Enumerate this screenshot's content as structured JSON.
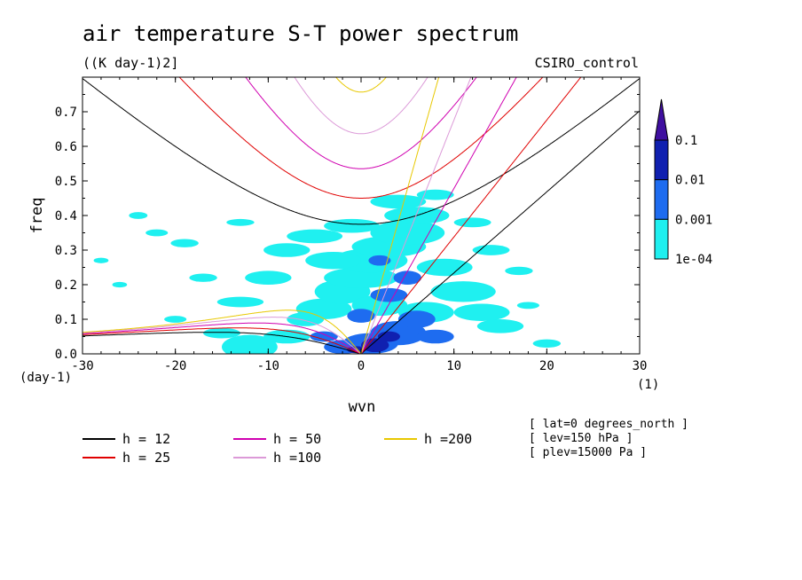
{
  "chart_data": {
    "type": "heatmap",
    "title": "air temperature S-T power spectrum",
    "units": "((K day-1)2]",
    "model": "CSIRO_control",
    "xlabel": "wvn",
    "ylabel": "freq",
    "x_unit_label": "(1)",
    "y_unit_label": "(day-1)",
    "xlim": [
      -30,
      30
    ],
    "ylim": [
      0,
      0.8
    ],
    "xticks": [
      "-30",
      "-20",
      "-10",
      "0",
      "10",
      "20",
      "30"
    ],
    "yticks": [
      "0.0",
      "0.1",
      "0.2",
      "0.3",
      "0.4",
      "0.5",
      "0.6",
      "0.7"
    ],
    "colorbar": {
      "levels": [
        "0.1",
        "0.01",
        "0.001",
        "1e-04"
      ],
      "colors": [
        "#3f0fa0",
        "#1020b0",
        "#1e6cf0",
        "#1ff0f0"
      ]
    },
    "power_regions": {
      "cyan_1e-04": [
        [
          -12,
          0.02,
          3,
          0.035
        ],
        [
          -8,
          0.05,
          2.5,
          0.02
        ],
        [
          -6,
          0.1,
          2,
          0.02
        ],
        [
          -4,
          0.13,
          3,
          0.03
        ],
        [
          -2,
          0.18,
          3,
          0.035
        ],
        [
          0,
          0.22,
          4,
          0.03
        ],
        [
          1,
          0.27,
          4,
          0.035
        ],
        [
          3,
          0.31,
          4,
          0.03
        ],
        [
          5,
          0.35,
          4,
          0.035
        ],
        [
          6,
          0.4,
          3.5,
          0.025
        ],
        [
          4,
          0.44,
          3,
          0.02
        ],
        [
          -1,
          0.37,
          3,
          0.02
        ],
        [
          -5,
          0.34,
          3,
          0.02
        ],
        [
          -8,
          0.3,
          2.5,
          0.02
        ],
        [
          -10,
          0.22,
          2.5,
          0.02
        ],
        [
          -13,
          0.15,
          2.5,
          0.015
        ],
        [
          -15,
          0.06,
          2,
          0.015
        ],
        [
          9,
          0.25,
          3,
          0.025
        ],
        [
          11,
          0.18,
          3.5,
          0.03
        ],
        [
          13,
          0.12,
          3,
          0.025
        ],
        [
          15,
          0.08,
          2.5,
          0.02
        ],
        [
          -19,
          0.32,
          1.5,
          0.012
        ],
        [
          -17,
          0.22,
          1.5,
          0.012
        ],
        [
          14,
          0.3,
          2,
          0.015
        ],
        [
          -24,
          0.4,
          1,
          0.01
        ],
        [
          -26,
          0.2,
          0.8,
          0.008
        ],
        [
          -20,
          0.1,
          1.2,
          0.01
        ],
        [
          -28,
          0.27,
          0.8,
          0.008
        ],
        [
          8,
          0.46,
          2,
          0.015
        ],
        [
          -3,
          0.27,
          3,
          0.025
        ],
        [
          2,
          0.14,
          3,
          0.03
        ],
        [
          7,
          0.12,
          3,
          0.03
        ],
        [
          -22,
          0.35,
          1.2,
          0.01
        ],
        [
          -13,
          0.38,
          1.5,
          0.01
        ],
        [
          17,
          0.24,
          1.5,
          0.012
        ],
        [
          20,
          0.03,
          1.5,
          0.012
        ],
        [
          18,
          0.14,
          1.2,
          0.01
        ],
        [
          12,
          0.38,
          2,
          0.014
        ]
      ],
      "blue_0.001": [
        [
          1,
          0.03,
          3,
          0.03
        ],
        [
          4,
          0.06,
          3,
          0.035
        ],
        [
          -2,
          0.02,
          2,
          0.02
        ],
        [
          6,
          0.1,
          2,
          0.025
        ],
        [
          3,
          0.17,
          2,
          0.02
        ],
        [
          0,
          0.11,
          1.5,
          0.02
        ],
        [
          8,
          0.05,
          2,
          0.02
        ],
        [
          5,
          0.22,
          1.5,
          0.02
        ],
        [
          -4,
          0.05,
          1.5,
          0.015
        ],
        [
          2,
          0.27,
          1.2,
          0.015
        ]
      ],
      "darkblue_0.01": [
        [
          1.5,
          0.025,
          1.5,
          0.02
        ],
        [
          3,
          0.05,
          1.2,
          0.015
        ],
        [
          -0.5,
          0.012,
          1,
          0.01
        ]
      ]
    },
    "series": [
      {
        "name": "h = 12",
        "color": "#000000",
        "wave_speed": 10.85
      },
      {
        "name": "h = 25",
        "color": "#e00000",
        "wave_speed": 15.66
      },
      {
        "name": "h = 50",
        "color": "#d000b0",
        "wave_speed": 22.15
      },
      {
        "name": "h =100",
        "color": "#dc9ad8",
        "wave_speed": 31.32
      },
      {
        "name": "h =200",
        "color": "#e8c800",
        "wave_speed": 44.29
      }
    ],
    "annotations": [
      "[ lat=0 degrees_north ]",
      "[ lev=150 hPa ]",
      "[ plev=15000 Pa ]"
    ]
  }
}
